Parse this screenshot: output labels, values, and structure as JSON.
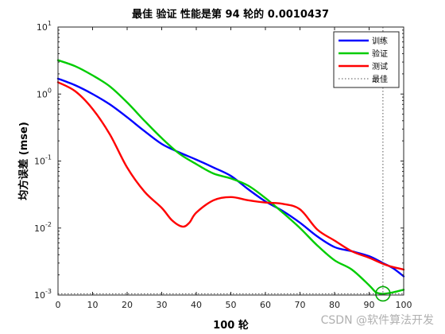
{
  "chart_data": {
    "type": "line",
    "title": "最佳 验证 性能是第 94 轮的 0.0010437",
    "xlabel": "100 轮",
    "ylabel": "均方误差 (mse)",
    "xlim": [
      0,
      100
    ],
    "ylim": [
      0.001,
      10
    ],
    "yscale": "log",
    "x_ticks": [
      "0",
      "10",
      "20",
      "30",
      "40",
      "50",
      "60",
      "70",
      "80",
      "90",
      "100"
    ],
    "y_ticks": [
      {
        "base": "10",
        "exp": "-3"
      },
      {
        "base": "10",
        "exp": "-2"
      },
      {
        "base": "10",
        "exp": "-1"
      },
      {
        "base": "10",
        "exp": "0"
      },
      {
        "base": "10",
        "exp": "1"
      }
    ],
    "legend_position": "top-right",
    "best": {
      "epoch": 94,
      "value": 0.0010437,
      "label": "最佳"
    },
    "series": [
      {
        "name": "训练",
        "color": "#0000ff",
        "x": [
          0,
          5,
          10,
          15,
          20,
          25,
          30,
          35,
          40,
          45,
          50,
          55,
          60,
          65,
          70,
          75,
          80,
          85,
          90,
          94,
          97,
          100
        ],
        "y": [
          1.7,
          1.35,
          1.0,
          0.7,
          0.45,
          0.28,
          0.18,
          0.135,
          0.105,
          0.08,
          0.06,
          0.038,
          0.025,
          0.018,
          0.012,
          0.0075,
          0.0052,
          0.0045,
          0.0038,
          0.003,
          0.0025,
          0.0019
        ]
      },
      {
        "name": "验证",
        "color": "#00cc00",
        "x": [
          0,
          5,
          10,
          15,
          20,
          25,
          30,
          35,
          40,
          45,
          50,
          55,
          60,
          65,
          70,
          75,
          80,
          85,
          90,
          92,
          94,
          97,
          100
        ],
        "y": [
          3.2,
          2.6,
          1.9,
          1.3,
          0.75,
          0.4,
          0.22,
          0.13,
          0.09,
          0.065,
          0.055,
          0.043,
          0.028,
          0.017,
          0.01,
          0.0055,
          0.0033,
          0.0024,
          0.0014,
          0.0011,
          0.0010437,
          0.0011,
          0.0012
        ]
      },
      {
        "name": "测试",
        "color": "#ff0000",
        "x": [
          0,
          5,
          10,
          15,
          20,
          25,
          30,
          33,
          36,
          38,
          40,
          45,
          50,
          55,
          60,
          65,
          70,
          75,
          80,
          85,
          90,
          95,
          100
        ],
        "y": [
          1.5,
          1.1,
          0.6,
          0.25,
          0.08,
          0.035,
          0.02,
          0.013,
          0.0105,
          0.012,
          0.017,
          0.026,
          0.029,
          0.026,
          0.024,
          0.023,
          0.019,
          0.0095,
          0.0065,
          0.0045,
          0.0036,
          0.0028,
          0.0024
        ]
      }
    ]
  },
  "watermark": "CSDN @软件算法开发"
}
